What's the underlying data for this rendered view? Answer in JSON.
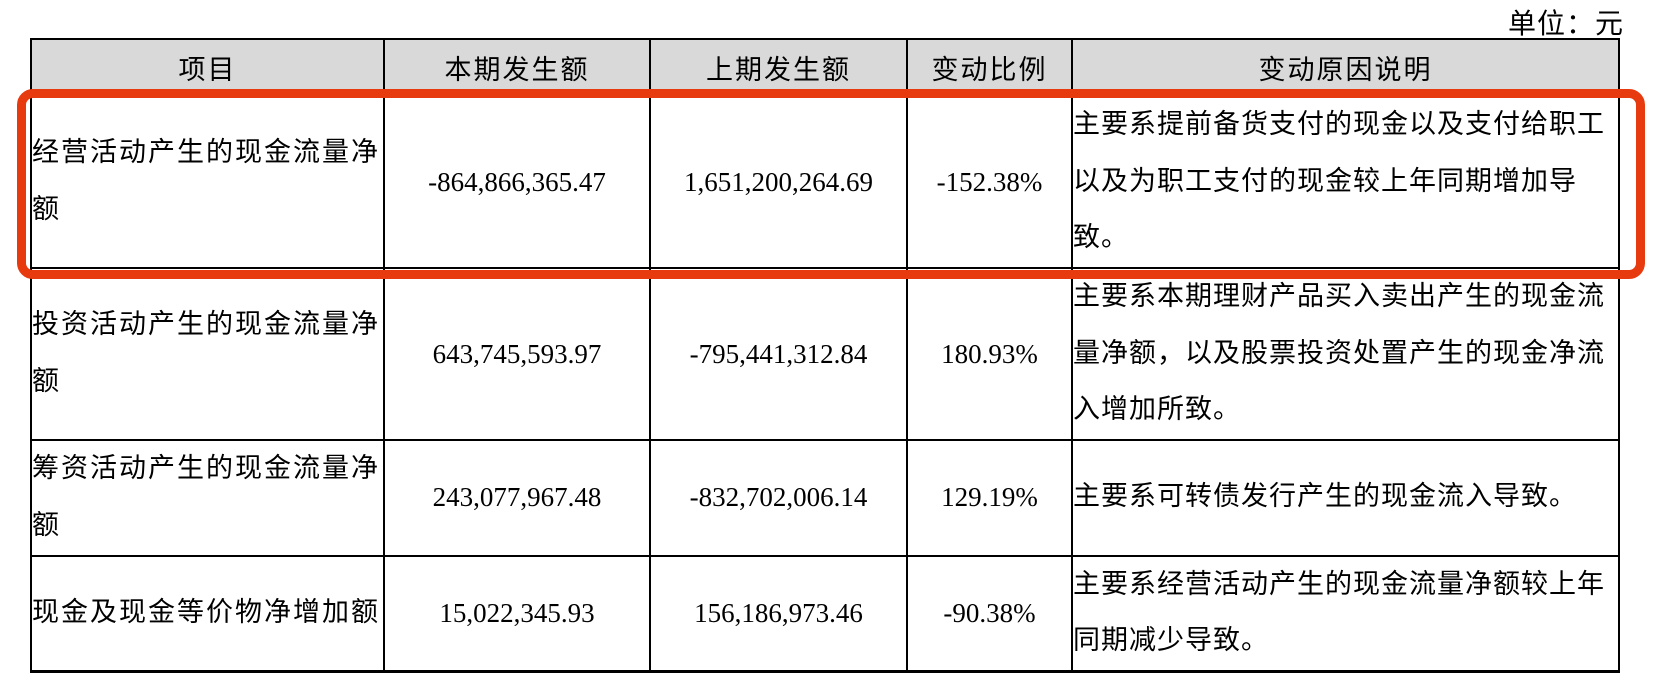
{
  "unit_label": "单位：元",
  "colors": {
    "highlight_border": "#e83a0f",
    "header_background": "#d9d9d9",
    "table_border": "#000000"
  },
  "table": {
    "headers": {
      "item": "项目",
      "current": "本期发生额",
      "prior": "上期发生额",
      "change": "变动比例",
      "reason": "变动原因说明"
    },
    "rows": [
      {
        "item": "经营活动产生的现金流量净额",
        "current": "-864,866,365.47",
        "prior": "1,651,200,264.69",
        "change": "-152.38%",
        "reason": "主要系提前备货支付的现金以及支付给职工以及为职工支付的现金较上年同期增加导致。",
        "highlighted": true
      },
      {
        "item": "投资活动产生的现金流量净额",
        "current": "643,745,593.97",
        "prior": "-795,441,312.84",
        "change": "180.93%",
        "reason": "主要系本期理财产品买入卖出产生的现金流量净额，以及股票投资处置产生的现金净流入增加所致。",
        "highlighted": false
      },
      {
        "item": "筹资活动产生的现金流量净额",
        "current": "243,077,967.48",
        "prior": "-832,702,006.14",
        "change": "129.19%",
        "reason": "主要系可转债发行产生的现金流入导致。",
        "highlighted": false
      },
      {
        "item": "现金及现金等价物净增加额",
        "current": "15,022,345.93",
        "prior": "156,186,973.46",
        "change": "-90.38%",
        "reason": "主要系经营活动产生的现金流量净额较上年同期减少导致。",
        "highlighted": false
      }
    ]
  }
}
